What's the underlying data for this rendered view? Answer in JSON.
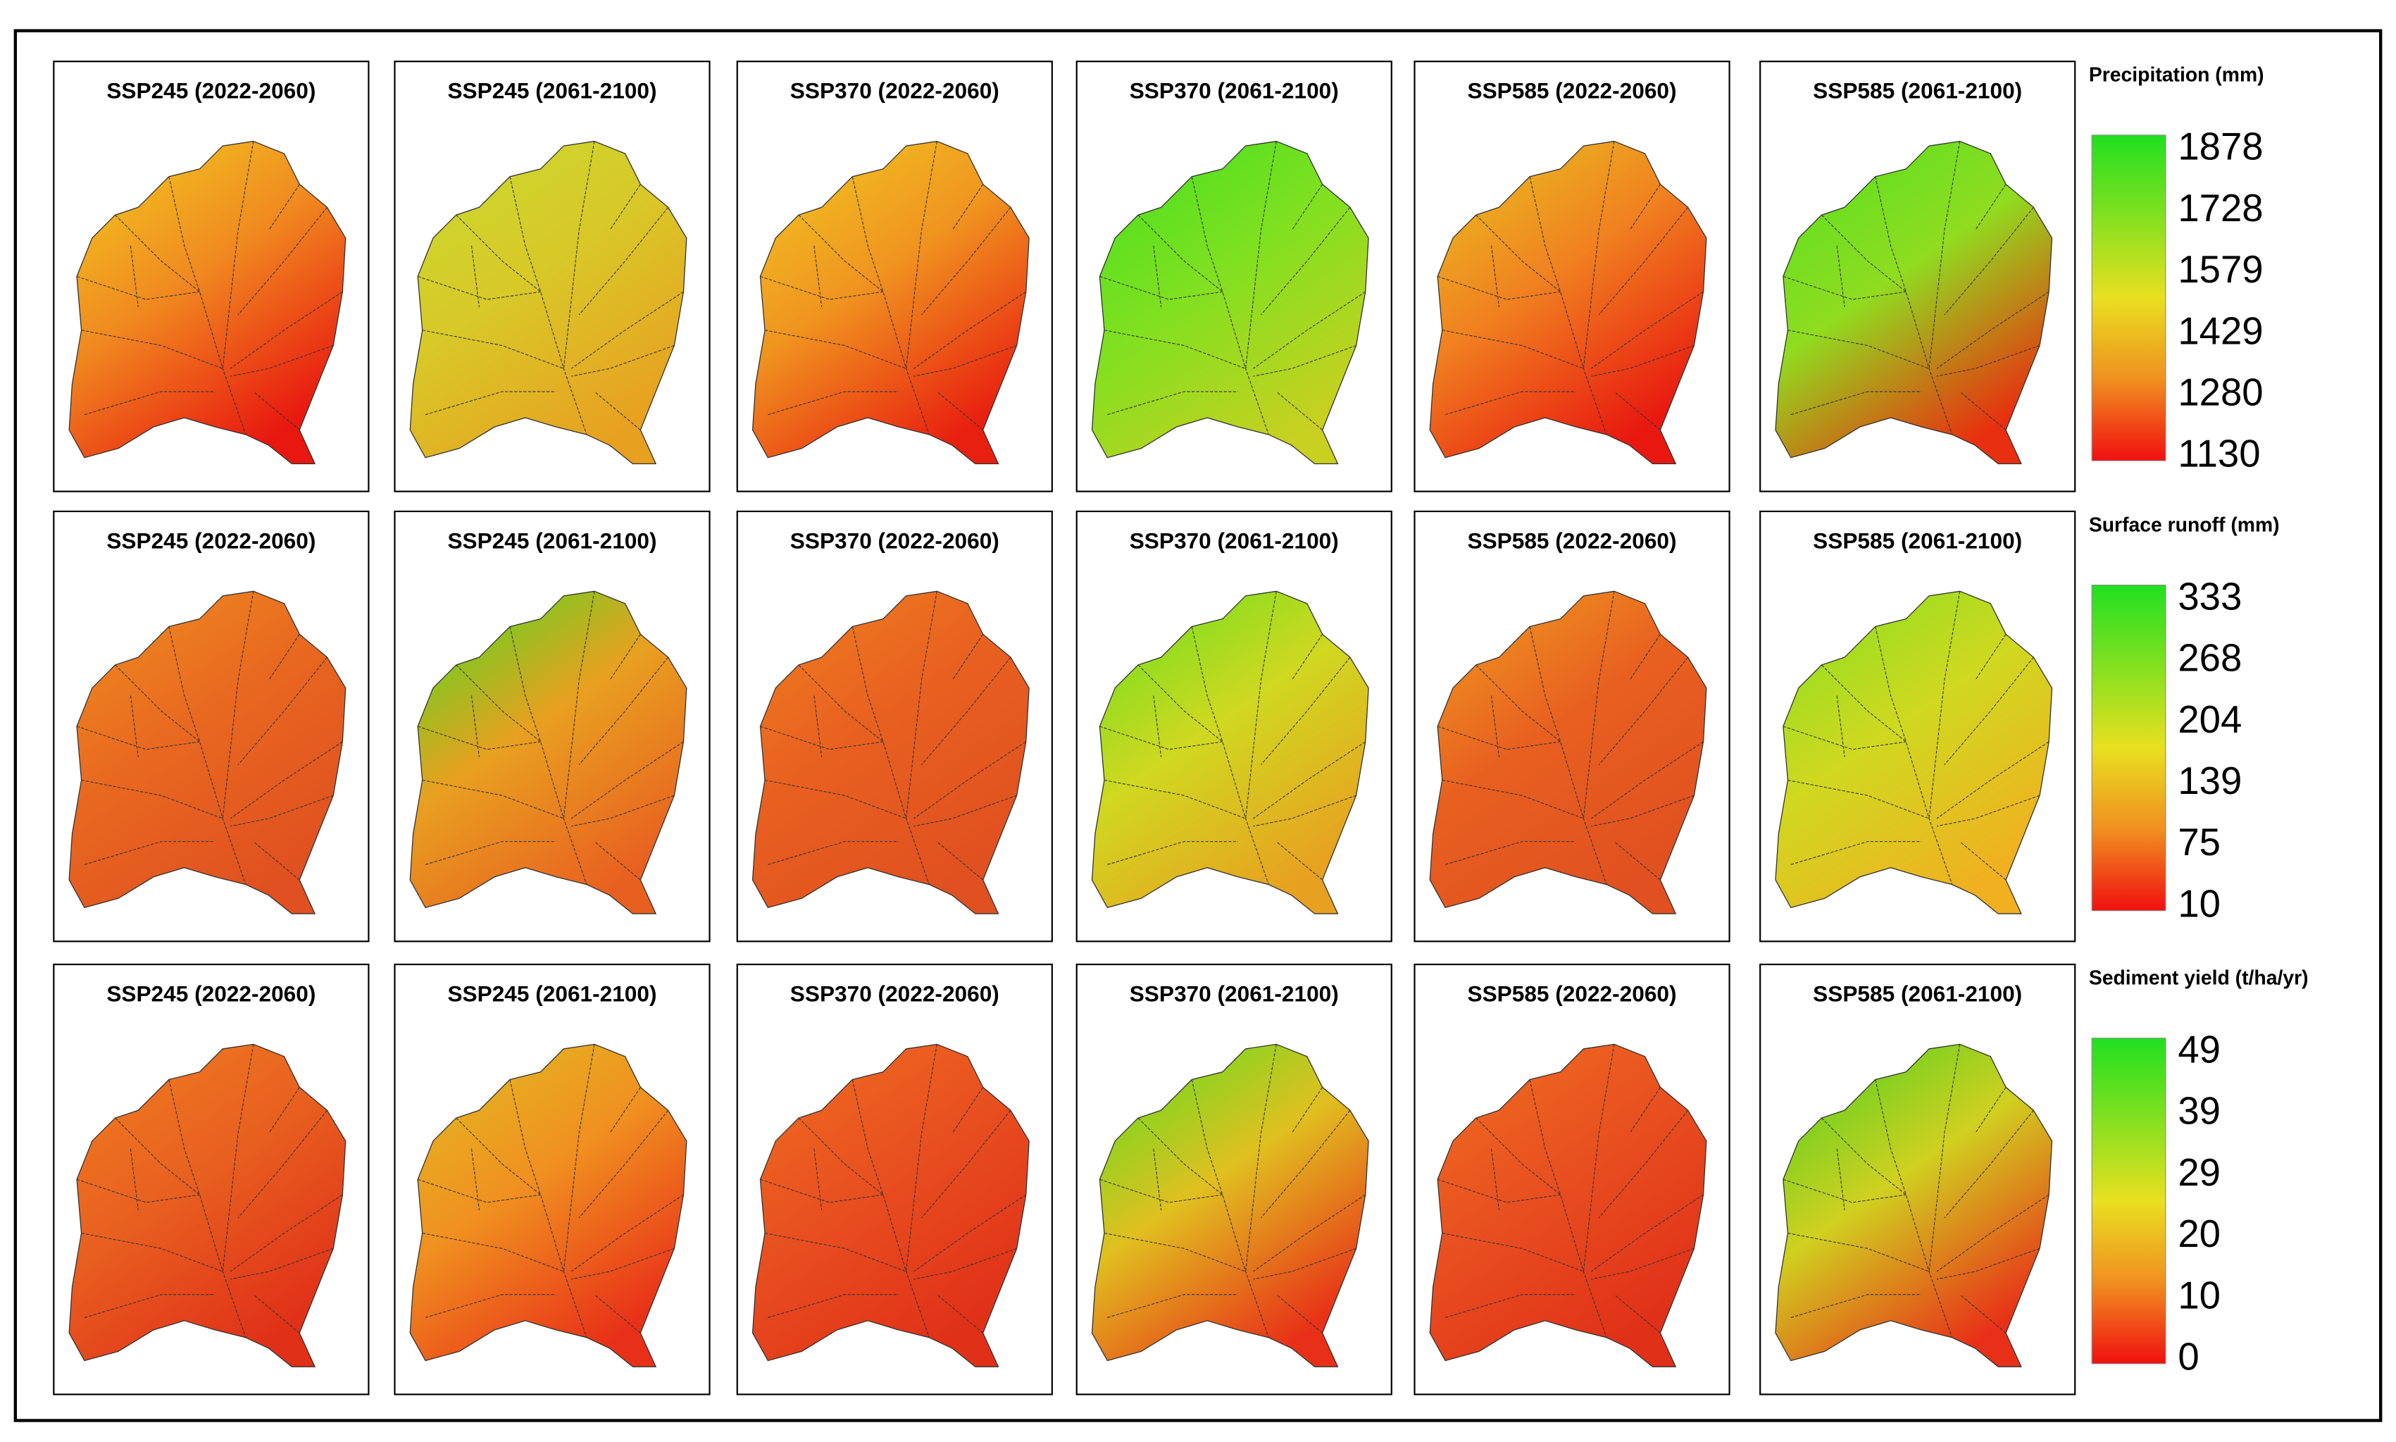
{
  "rows": [
    {
      "legend": {
        "title": "Precipitation (mm)",
        "ticks": [
          "1878",
          "1728",
          "1579",
          "1429",
          "1280",
          "1130"
        ]
      },
      "panels": [
        {
          "title": "SSP245 (2022-2060)"
        },
        {
          "title": "SSP245 (2061-2100)"
        },
        {
          "title": "SSP370 (2022-2060)"
        },
        {
          "title": "SSP370 (2061-2100)"
        },
        {
          "title": "SSP585 (2022-2060)"
        },
        {
          "title": "SSP585 (2061-2100)"
        }
      ]
    },
    {
      "legend": {
        "title": "Surface runoff (mm)",
        "ticks": [
          "333",
          "268",
          "204",
          "139",
          "75",
          "10"
        ]
      },
      "panels": [
        {
          "title": "SSP245 (2022-2060)"
        },
        {
          "title": "SSP245 (2061-2100)"
        },
        {
          "title": "SSP370 (2022-2060)"
        },
        {
          "title": "SSP370 (2061-2100)"
        },
        {
          "title": "SSP585 (2022-2060)"
        },
        {
          "title": "SSP585 (2061-2100)"
        }
      ]
    },
    {
      "legend": {
        "title": "Sediment yield (t/ha/yr)",
        "ticks": [
          "49",
          "39",
          "29",
          "20",
          "10",
          "0"
        ]
      },
      "panels": [
        {
          "title": "SSP245 (2022-2060)"
        },
        {
          "title": "SSP245 (2061-2100)"
        },
        {
          "title": "SSP370 (2022-2060)"
        },
        {
          "title": "SSP370 (2061-2100)"
        },
        {
          "title": "SSP585 (2022-2060)"
        },
        {
          "title": "SSP585 (2061-2100)"
        }
      ]
    }
  ]
}
